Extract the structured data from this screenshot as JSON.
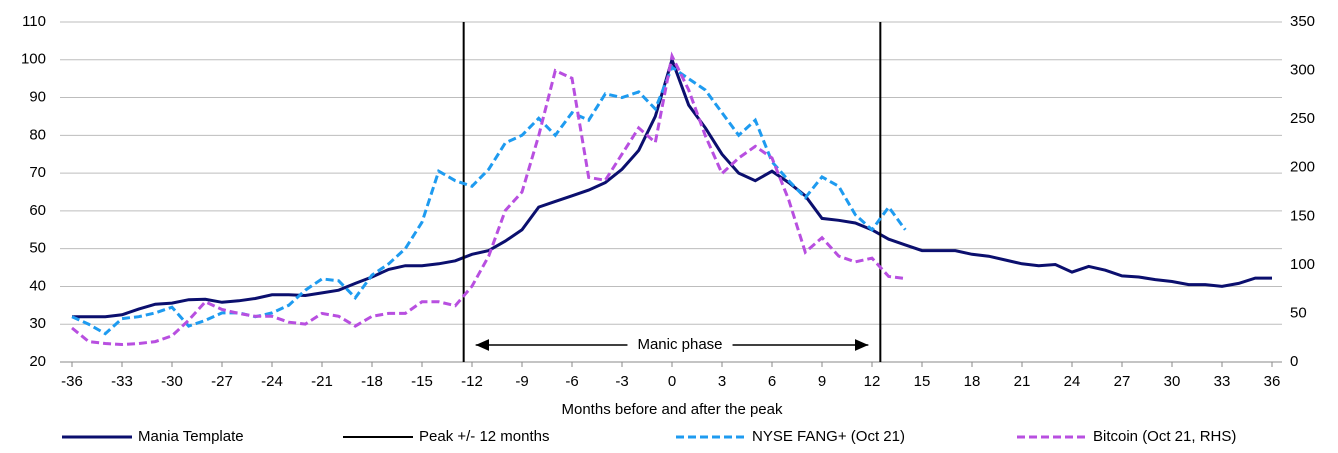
{
  "chart_data": {
    "type": "line",
    "x_label": "Months before and after the peak",
    "xlim": [
      -36,
      36
    ],
    "xticks": [
      -36,
      -33,
      -30,
      -27,
      -24,
      -21,
      -18,
      -15,
      -12,
      -9,
      -6,
      -3,
      0,
      3,
      6,
      9,
      12,
      15,
      18,
      21,
      24,
      27,
      30,
      33,
      36
    ],
    "ylim": [
      20,
      110
    ],
    "yticks": [
      20,
      30,
      40,
      50,
      60,
      70,
      80,
      90,
      100,
      110
    ],
    "y2lim": [
      0,
      350
    ],
    "y2ticks": [
      0,
      50,
      100,
      150,
      200,
      250,
      300,
      350
    ],
    "grid": true,
    "legend": "bottom",
    "annotations": [
      {
        "text": "Manic phase"
      }
    ],
    "series": [
      {
        "name": "Mania Template",
        "color": "#0b0f6e",
        "dashed": false,
        "x": [
          -36,
          -35,
          -34,
          -33,
          -32,
          -31,
          -30,
          -29,
          -28,
          -27,
          -26,
          -25,
          -24,
          -23,
          -22,
          -21,
          -20,
          -19,
          -18,
          -17,
          -16,
          -15,
          -14,
          -13,
          -12,
          -11,
          -10,
          -9,
          -8,
          -7,
          -6,
          -5,
          -4,
          -3,
          -2,
          -1,
          0,
          1,
          2,
          3,
          4,
          5,
          6,
          7,
          8,
          9,
          10,
          11,
          12,
          13,
          14,
          15,
          16,
          17,
          18,
          19,
          20,
          21,
          22,
          23,
          24,
          25,
          26,
          27,
          28,
          29,
          30,
          31,
          32,
          33,
          34,
          35,
          36
        ],
        "values": [
          32,
          32,
          32,
          32.5,
          34,
          35.3,
          35.6,
          36.5,
          36.6,
          35.8,
          36.2,
          36.8,
          37.8,
          37.8,
          37.6,
          38.3,
          39,
          40.8,
          42.5,
          44.5,
          45.5,
          45.5,
          46,
          46.8,
          48.5,
          49.5,
          52,
          55,
          61,
          62.5,
          64,
          65.5,
          67.5,
          71,
          76,
          85,
          100,
          88,
          82,
          75,
          70,
          68,
          70.5,
          67.5,
          64,
          58,
          57.5,
          56.8,
          55,
          52.5,
          51,
          49.5,
          49.5,
          49.5,
          48.5,
          48,
          47,
          46,
          45.5,
          45.8,
          43.8,
          45.3,
          44.3,
          42.8,
          42.5,
          41.8,
          41.3,
          40.5,
          40.5,
          40,
          40.8,
          42.2,
          42.2
        ]
      },
      {
        "name": "Peak +/- 12 months",
        "color": "#000000",
        "kind": "vline",
        "x": [
          -12.5,
          12.5
        ]
      },
      {
        "name": "NYSE FANG+ (Oct 21)",
        "color": "#1e9bf0",
        "dashed": true,
        "x": [
          -36,
          -35,
          -34,
          -33,
          -32,
          -31,
          -30,
          -29,
          -28,
          -27,
          -26,
          -25,
          -24,
          -23,
          -22,
          -21,
          -20,
          -19,
          -18,
          -17,
          -16,
          -15,
          -14,
          -13,
          -12,
          -11,
          -10,
          -9,
          -8,
          -7,
          -6,
          -5,
          -4,
          -3,
          -2,
          -1,
          0,
          1,
          2,
          3,
          4,
          5,
          6,
          7,
          8,
          9,
          10,
          11,
          12,
          13,
          14
        ],
        "values": [
          32,
          30,
          27.5,
          31.5,
          32,
          33,
          34.5,
          29.5,
          31,
          33,
          33,
          32,
          33,
          35,
          39,
          42,
          41.5,
          37,
          43,
          46,
          50,
          57,
          70.5,
          68,
          66.5,
          71,
          78,
          80,
          84.5,
          80,
          86,
          84,
          91,
          90,
          91.5,
          87,
          98,
          95,
          92,
          86,
          80,
          84,
          73,
          68,
          63.5,
          69,
          66.5,
          59,
          55,
          61,
          55
        ]
      },
      {
        "name": "Bitcoin (Oct 21, RHS)",
        "color": "#b84fe0",
        "dashed": true,
        "axis": "y2",
        "x": [
          -36,
          -35,
          -34,
          -33,
          -32,
          -31,
          -30,
          -29,
          -28,
          -27,
          -26,
          -25,
          -24,
          -23,
          -22,
          -21,
          -20,
          -19,
          -18,
          -17,
          -16,
          -15,
          -14,
          -13,
          -12,
          -11,
          -10,
          -9,
          -8,
          -7,
          -6,
          -5,
          -4,
          -3,
          -2,
          -1,
          0,
          1,
          2,
          3,
          4,
          5,
          6,
          7,
          8,
          9,
          10,
          11,
          12,
          13,
          14
        ],
        "values": [
          35,
          21,
          19,
          18,
          19,
          21,
          27,
          43,
          62,
          54,
          50,
          47,
          47,
          41,
          39,
          50,
          47,
          37,
          47,
          50,
          50,
          62,
          62,
          58,
          78,
          109,
          156,
          175,
          233,
          300,
          292,
          190,
          187,
          214,
          241,
          226,
          315,
          280,
          233,
          194,
          210,
          222,
          210,
          167,
          113,
          128,
          109,
          103,
          107,
          88,
          86
        ]
      }
    ]
  }
}
